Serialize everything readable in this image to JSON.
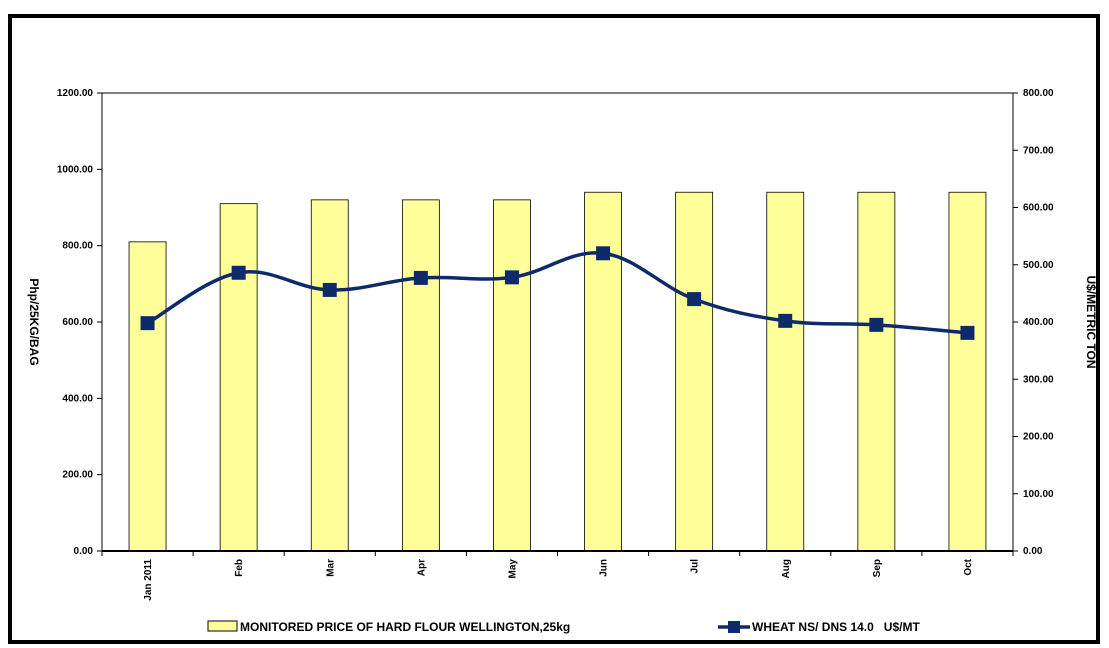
{
  "chart_data": {
    "type": "bar",
    "categories": [
      "Jan 2011",
      "Feb",
      "Mar",
      "Apr",
      "May",
      "Jun",
      "Jul",
      "Aug",
      "Sep",
      "Oct"
    ],
    "series": [
      {
        "name": "MONITORED PRICE OF HARD FLOUR WELLINGTON,25kg",
        "type": "bar",
        "axis": "left",
        "color": "#ffff99",
        "values": [
          810,
          910,
          920,
          920,
          920,
          940,
          940,
          940,
          940,
          940
        ]
      },
      {
        "name": "WHEAT NS/ DNS 14.0   U$/MT",
        "type": "line",
        "axis": "right",
        "color": "#0d2b6b",
        "values": [
          398,
          486,
          456,
          477,
          478,
          520,
          440,
          402,
          395,
          381
        ]
      }
    ],
    "ylabel": "Php/25KG/BAG",
    "ylabel_right": "U$/METRIC TON",
    "ylim": [
      0,
      1200
    ],
    "ylim_right": [
      0,
      800
    ],
    "yticks": [
      "0.00",
      "200.00",
      "400.00",
      "600.00",
      "800.00",
      "1000.00",
      "1200.00"
    ],
    "yticks_right": [
      "0.00",
      "100.00",
      "200.00",
      "300.00",
      "400.00",
      "500.00",
      "600.00",
      "700.00",
      "800.00"
    ],
    "grid": false,
    "legend_position": "bottom"
  }
}
